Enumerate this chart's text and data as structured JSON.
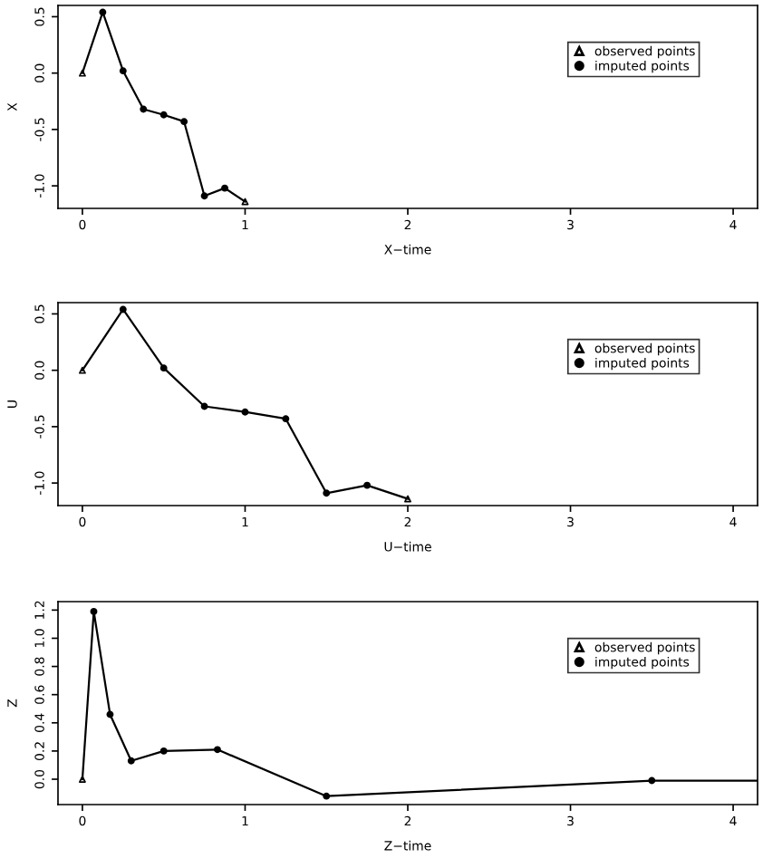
{
  "chart_data": [
    {
      "type": "line",
      "xlabel": "X−time",
      "ylabel": "X",
      "xlim": [
        -0.15,
        4.15
      ],
      "xticks": [
        0,
        1,
        2,
        3,
        4
      ],
      "ylim": [
        -1.2,
        0.6
      ],
      "yticks": [
        {
          "value": -1.0,
          "label": "-1.0"
        },
        {
          "value": -0.5,
          "label": "-0.5"
        },
        {
          "value": 0.0,
          "label": "0.0"
        },
        {
          "value": 0.5,
          "label": "0.5"
        }
      ],
      "grid": false,
      "legend": "top right",
      "series": [
        {
          "color": "#000000",
          "x": [
            0,
            0.125,
            0.25,
            0.375,
            0.5,
            0.625,
            0.75,
            0.875,
            1.0
          ],
          "values": [
            0,
            0.54,
            0.02,
            -0.32,
            -0.37,
            -0.43,
            -1.09,
            -1.02,
            -1.14
          ]
        },
        {
          "type": "scatter",
          "name": "observed points",
          "color": "#000000",
          "marker": "triangle",
          "x": [
            0,
            1.0
          ],
          "values": [
            0,
            -1.14
          ]
        },
        {
          "type": "scatter",
          "name": "imputed points",
          "color": "#000000",
          "marker": "circle",
          "x": [
            0.125,
            0.25,
            0.375,
            0.5,
            0.625,
            0.75,
            0.875
          ],
          "values": [
            0.54,
            0.02,
            -0.32,
            -0.37,
            -0.43,
            -1.09,
            -1.02
          ]
        }
      ]
    },
    {
      "type": "line",
      "xlabel": "U−time",
      "ylabel": "U",
      "xlim": [
        -0.15,
        4.15
      ],
      "xticks": [
        0,
        1,
        2,
        3,
        4
      ],
      "ylim": [
        -1.2,
        0.6
      ],
      "yticks": [
        {
          "value": -1.0,
          "label": "-1.0"
        },
        {
          "value": -0.5,
          "label": "-0.5"
        },
        {
          "value": 0.0,
          "label": "0.0"
        },
        {
          "value": 0.5,
          "label": "0.5"
        }
      ],
      "grid": false,
      "legend": "top right",
      "series": [
        {
          "color": "#000000",
          "x": [
            0,
            0.25,
            0.5,
            0.75,
            1.0,
            1.25,
            1.5,
            1.75,
            2.0
          ],
          "values": [
            0,
            0.54,
            0.02,
            -0.32,
            -0.37,
            -0.43,
            -1.09,
            -1.02,
            -1.14
          ]
        },
        {
          "type": "scatter",
          "name": "observed points",
          "color": "#000000",
          "marker": "triangle",
          "x": [
            0,
            2.0
          ],
          "values": [
            0,
            -1.14
          ]
        },
        {
          "type": "scatter",
          "name": "imputed points",
          "color": "#000000",
          "marker": "circle",
          "x": [
            0.25,
            0.5,
            0.75,
            1.0,
            1.25,
            1.5,
            1.75
          ],
          "values": [
            0.54,
            0.02,
            -0.32,
            -0.37,
            -0.43,
            -1.09,
            -1.02
          ]
        }
      ]
    },
    {
      "type": "line",
      "xlabel": "Z−time",
      "ylabel": "Z",
      "xlim": [
        -0.15,
        4.15
      ],
      "xticks": [
        0,
        1,
        2,
        3,
        4
      ],
      "ylim": [
        -0.18,
        1.26
      ],
      "yticks": [
        {
          "value": 0.0,
          "label": "0.0"
        },
        {
          "value": 0.2,
          "label": "0.2"
        },
        {
          "value": 0.4,
          "label": "0.4"
        },
        {
          "value": 0.6,
          "label": "0.6"
        },
        {
          "value": 0.8,
          "label": "0.8"
        },
        {
          "value": 1.0,
          "label": "1.0"
        },
        {
          "value": 1.2,
          "label": "1.2"
        }
      ],
      "grid": false,
      "legend": "top right",
      "series": [
        {
          "color": "#000000",
          "x": [
            0,
            0.07,
            0.17,
            0.3,
            0.5,
            0.83,
            1.5,
            3.5,
            4.15
          ],
          "values": [
            0,
            1.19,
            0.46,
            0.13,
            0.2,
            0.21,
            -0.12,
            -0.01,
            -0.01
          ]
        },
        {
          "type": "scatter",
          "name": "observed points",
          "color": "#000000",
          "marker": "triangle",
          "x": [
            0
          ],
          "values": [
            0
          ]
        },
        {
          "type": "scatter",
          "name": "imputed points",
          "color": "#000000",
          "marker": "circle",
          "x": [
            0.07,
            0.17,
            0.3,
            0.5,
            0.83,
            1.5,
            3.5
          ],
          "values": [
            1.19,
            0.46,
            0.13,
            0.2,
            0.21,
            -0.12,
            -0.01
          ]
        }
      ]
    }
  ]
}
